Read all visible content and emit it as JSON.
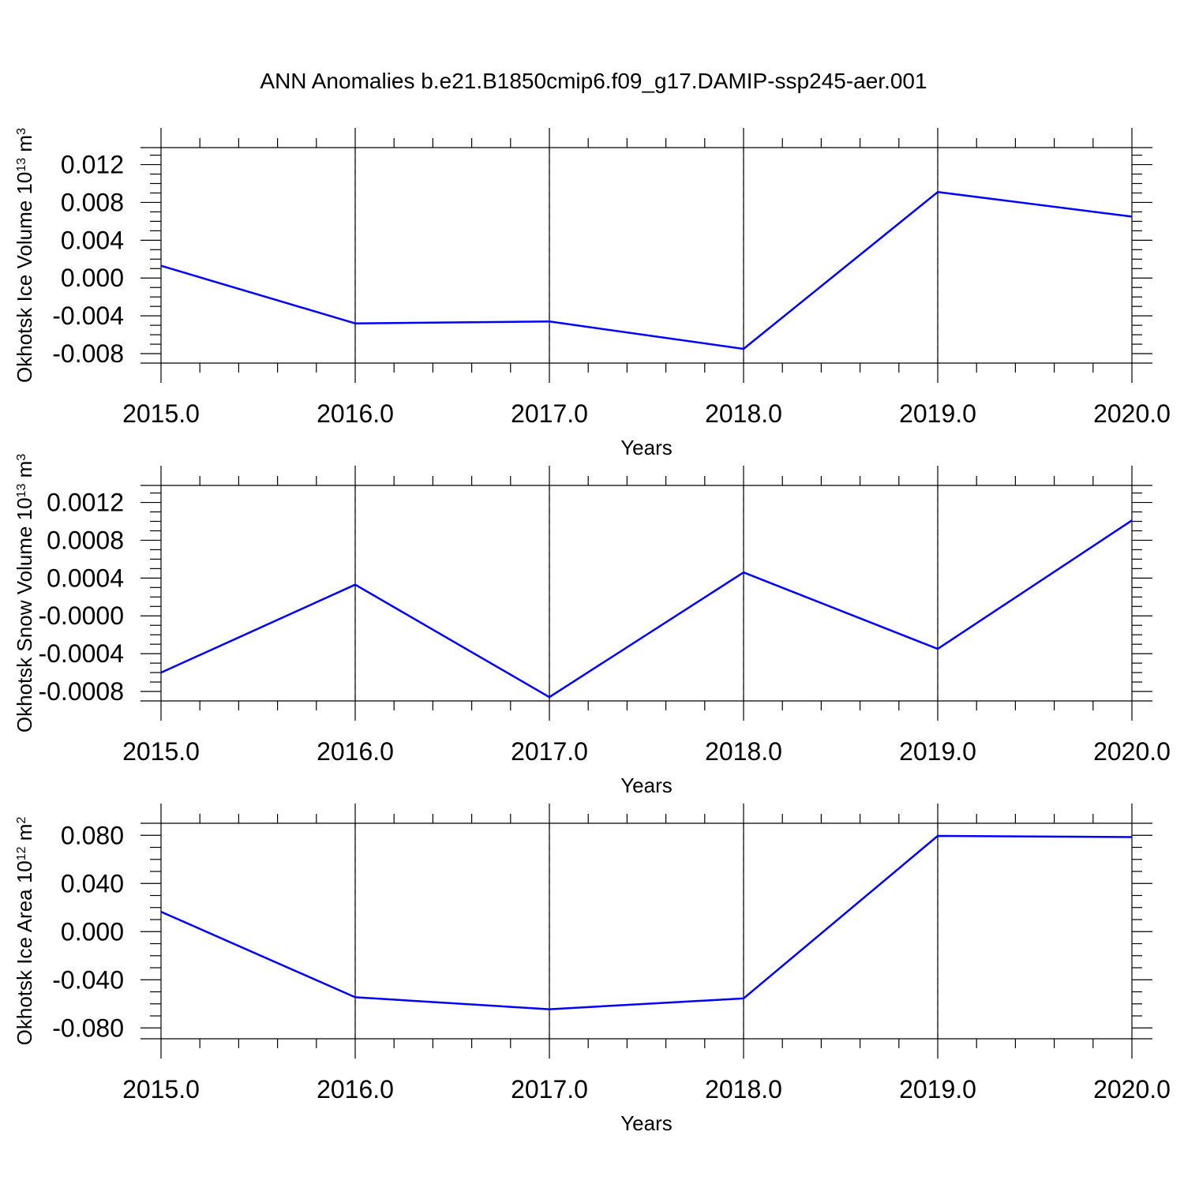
{
  "title": "ANN Anomalies b.e21.B1850cmip6.f09_g17.DAMIP-ssp245-aer.001",
  "chart_data": [
    {
      "type": "line",
      "x": [
        2015,
        2016,
        2017,
        2018,
        2019,
        2020
      ],
      "x_tick_labels": [
        "2015.0",
        "2016.0",
        "2017.0",
        "2018.0",
        "2019.0",
        "2020.0"
      ],
      "xlabel": "Years",
      "ylabel": "Okhotsk Ice Volume",
      "ylabel_unit": {
        "base": "10",
        "exp": "13",
        "unit": "m",
        "unit_exp": "3"
      },
      "ylim": [
        -0.009,
        0.0138
      ],
      "y_ticks": [
        0.012,
        0.008,
        0.004,
        0.0,
        -0.004,
        -0.008
      ],
      "y_tick_labels": [
        "0.012",
        "0.008",
        "0.004",
        "0.000",
        "-0.004",
        "-0.008"
      ],
      "series": [
        {
          "values": [
            0.0013,
            -0.0048,
            -0.0046,
            -0.0075,
            0.0091,
            0.0065
          ],
          "color": "#0000ff"
        }
      ]
    },
    {
      "type": "line",
      "x": [
        2015,
        2016,
        2017,
        2018,
        2019,
        2020
      ],
      "x_tick_labels": [
        "2015.0",
        "2016.0",
        "2017.0",
        "2018.0",
        "2019.0",
        "2020.0"
      ],
      "xlabel": "Years",
      "ylabel": "Okhotsk Snow Volume",
      "ylabel_unit": {
        "base": "10",
        "exp": "13",
        "unit": "m",
        "unit_exp": "3"
      },
      "ylim": [
        -0.0009,
        0.00138
      ],
      "y_ticks": [
        0.0012,
        0.0008,
        0.0004,
        0.0,
        -0.0004,
        -0.0008
      ],
      "y_tick_labels": [
        "0.0012",
        "0.0008",
        "0.0004",
        "-0.0000",
        "-0.0004",
        "-0.0008"
      ],
      "series": [
        {
          "values": [
            -0.0006,
            0.00033,
            -0.00086,
            0.00046,
            -0.00035,
            0.00101
          ],
          "color": "#0000ff"
        }
      ]
    },
    {
      "type": "line",
      "x": [
        2015,
        2016,
        2017,
        2018,
        2019,
        2020
      ],
      "x_tick_labels": [
        "2015.0",
        "2016.0",
        "2017.0",
        "2018.0",
        "2019.0",
        "2020.0"
      ],
      "xlabel": "Years",
      "ylabel": "Okhotsk Ice Area",
      "ylabel_unit": {
        "base": "10",
        "exp": "12",
        "unit": "m",
        "unit_exp": "2"
      },
      "ylim": [
        -0.089,
        0.09
      ],
      "y_ticks": [
        0.08,
        0.04,
        0.0,
        -0.04,
        -0.08
      ],
      "y_tick_labels": [
        "0.080",
        "0.040",
        "0.000",
        "-0.040",
        "-0.080"
      ],
      "series": [
        {
          "values": [
            0.0165,
            -0.0545,
            -0.0645,
            -0.0555,
            0.0795,
            0.0785
          ],
          "color": "#0000ff"
        }
      ]
    }
  ]
}
